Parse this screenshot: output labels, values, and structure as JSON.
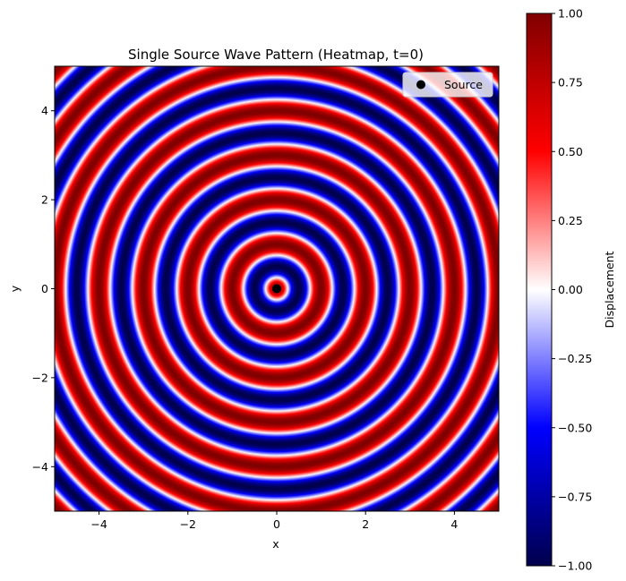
{
  "chart_data": {
    "type": "heatmap",
    "title": "Single Source Wave Pattern (Heatmap, t=0)",
    "xlabel": "x",
    "ylabel": "y",
    "xlim": [
      -5,
      5
    ],
    "ylim": [
      -5,
      5
    ],
    "x_ticks": [
      -4,
      -2,
      0,
      2,
      4
    ],
    "y_ticks": [
      -4,
      -2,
      0,
      2,
      4
    ],
    "x_tick_labels": [
      "−4",
      "−2",
      "0",
      "2",
      "4"
    ],
    "y_tick_labels": [
      "−4",
      "−2",
      "0",
      "2",
      "4"
    ],
    "field": "cos(2π·r)",
    "wavelength": 1.0,
    "source": {
      "x": 0,
      "y": 0,
      "label": "Source",
      "color": "#000000"
    },
    "legend": {
      "placement": "upper right",
      "entries": [
        "Source"
      ]
    },
    "colorbar": {
      "label": "Displacement",
      "vmin": -1.0,
      "vmax": 1.0,
      "ticks": [
        1.0,
        0.75,
        0.5,
        0.25,
        0.0,
        -0.25,
        -0.5,
        -0.75,
        -1.0
      ],
      "tick_labels": [
        "1.00",
        "0.75",
        "0.50",
        "0.25",
        "0.00",
        "−0.25",
        "−0.50",
        "−0.75",
        "−1.00"
      ],
      "colormap": "seismic",
      "colors": {
        "min": "#00004c",
        "mid_low": "#0000ff",
        "center": "#ffffff",
        "mid_high": "#ff0000",
        "max": "#800000"
      }
    },
    "grid": false
  }
}
